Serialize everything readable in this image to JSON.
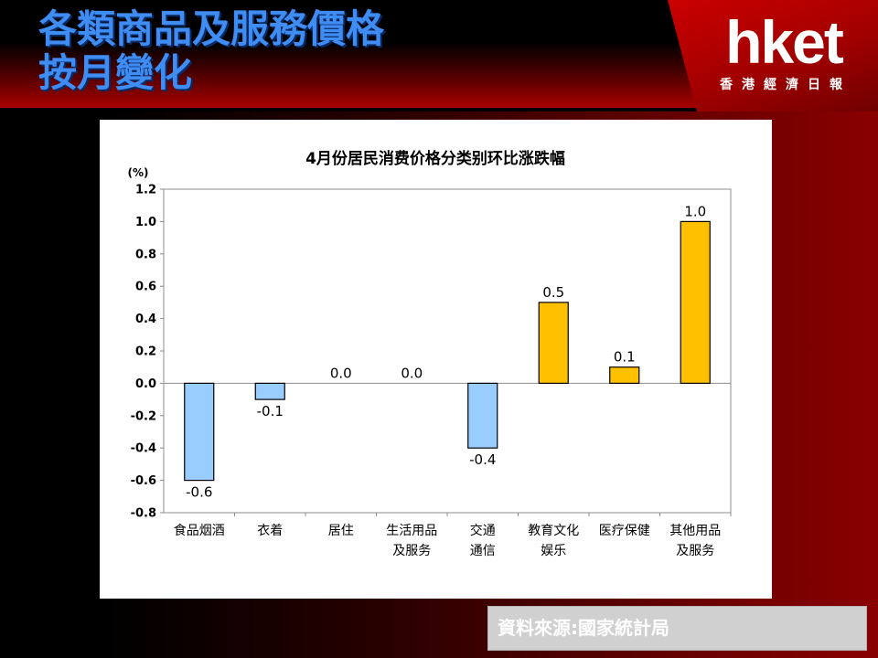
{
  "slide": {
    "title_line1": "各類商品及服務價格",
    "title_line2": "按月變化"
  },
  "logo": {
    "wordmark": "hket",
    "subtitle": "香港經濟日報"
  },
  "source": {
    "text": "資料來源:國家統計局"
  },
  "colors": {
    "negative_bar": "#99ccff",
    "positive_bar": "#ffc000",
    "bar_stroke": "#000000",
    "title_blue": "#3f8cf2",
    "brand_red": "#c00000"
  },
  "chart_data": {
    "type": "bar",
    "title": "4月份居民消费价格分类别环比涨跌幅",
    "ylabel": "(%)",
    "xlabel": "",
    "ylim": [
      -0.8,
      1.2
    ],
    "yticks": [
      "1.2",
      "1.0",
      "0.8",
      "0.6",
      "0.4",
      "0.2",
      "0.0",
      "-0.2",
      "-0.4",
      "-0.6",
      "-0.8"
    ],
    "categories": [
      [
        "食品烟酒"
      ],
      [
        "衣着"
      ],
      [
        "居住"
      ],
      [
        "生活用品",
        "及服务"
      ],
      [
        "交通",
        "通信"
      ],
      [
        "教育文化",
        "娱乐"
      ],
      [
        "医疗保健"
      ],
      [
        "其他用品",
        "及服务"
      ]
    ],
    "values": [
      -0.6,
      -0.1,
      0.0,
      0.0,
      -0.4,
      0.5,
      0.1,
      1.0
    ],
    "data_labels": [
      "-0.6",
      "-0.1",
      "0.0",
      "0.0",
      "-0.4",
      "0.5",
      "0.1",
      "1.0"
    ],
    "grid": false,
    "legend": "none"
  }
}
